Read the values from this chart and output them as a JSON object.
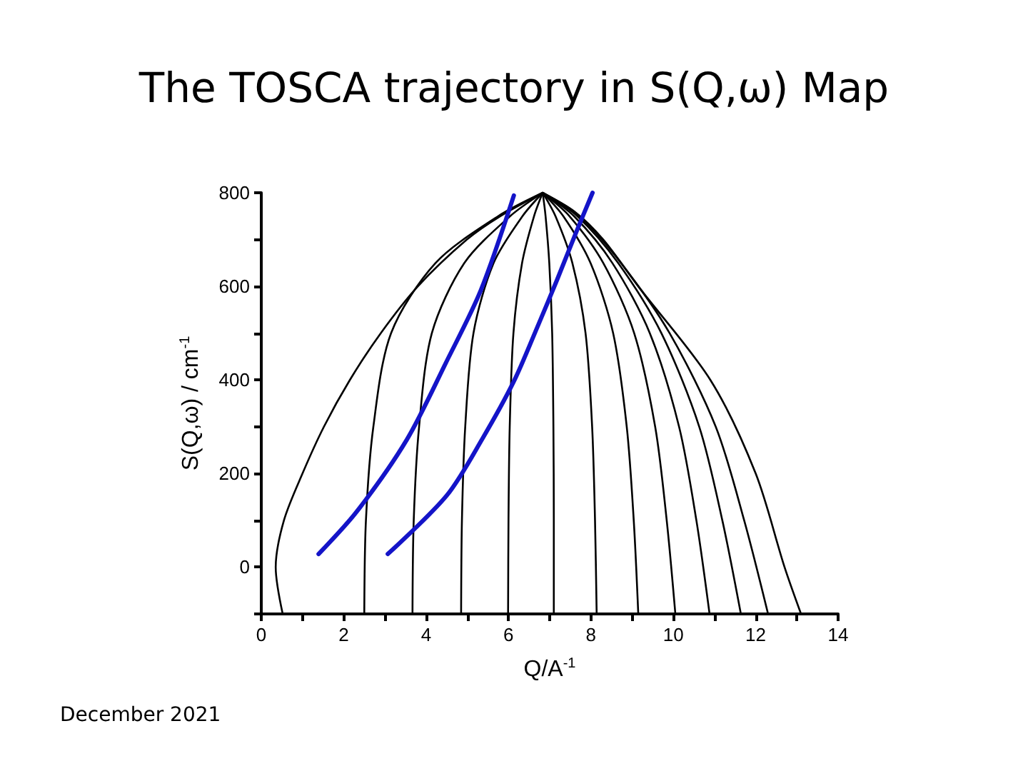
{
  "chart_data": {
    "type": "line",
    "title": "The TOSCA trajectory in S(Q,ω) Map",
    "xlabel": "Q/A$^{-1}$",
    "ylabel": "S(Q,ω) / cm$^{-1}$",
    "annotations": [
      "December 2021"
    ],
    "xlim": [
      0,
      14
    ],
    "xticks": [
      0,
      {
        "value": 1,
        "label": null
      },
      2,
      {
        "value": 3,
        "label": null
      },
      4,
      {
        "value": 5,
        "label": null
      },
      6,
      {
        "value": 7,
        "label": null
      },
      8,
      {
        "value": 9,
        "label": null
      },
      10,
      {
        "value": 11,
        "label": null
      },
      12,
      {
        "value": 13,
        "label": null
      },
      14
    ],
    "ylim": [
      -100,
      800
    ],
    "yticks": [
      {
        "value": -100,
        "label": null
      },
      0,
      {
        "value": 100,
        "label": null
      },
      200,
      {
        "value": 300,
        "label": null
      },
      400,
      {
        "value": 500,
        "label": null
      },
      600,
      {
        "value": 700,
        "label": null
      },
      800
    ],
    "marker": "none",
    "line_style": "solid",
    "series": [
      {
        "color": "#000000",
        "x": [
          0.52,
          0.35,
          0.55,
          1.0,
          1.52,
          2.15,
          2.9,
          3.8,
          4.99,
          5.8,
          6.83
        ],
        "values": [
          -100,
          0,
          100,
          200,
          300,
          400,
          500,
          600,
          700,
          750,
          800
        ]
      },
      {
        "color": "#000000",
        "x": [
          2.5,
          2.54,
          2.72,
          3.15,
          4.23,
          5.75,
          6.83
        ],
        "values": [
          -100,
          100,
          300,
          500,
          650,
          750,
          800
        ]
      },
      {
        "color": "#000000",
        "x": [
          3.67,
          3.7,
          3.83,
          4.14,
          4.93,
          6.04,
          6.83
        ],
        "values": [
          -100,
          100,
          300,
          500,
          650,
          750,
          800
        ]
      },
      {
        "color": "#000000",
        "x": [
          4.85,
          4.87,
          4.95,
          5.15,
          5.64,
          6.34,
          6.83
        ],
        "values": [
          -100,
          100,
          300,
          500,
          650,
          750,
          800
        ]
      },
      {
        "color": "#000000",
        "x": [
          5.99,
          6.0,
          6.03,
          6.12,
          6.33,
          6.62,
          6.83
        ],
        "values": [
          -100,
          100,
          300,
          500,
          650,
          750,
          800
        ]
      },
      {
        "color": "#000000",
        "x": [
          7.1,
          7.1,
          7.09,
          7.06,
          6.99,
          6.9,
          6.83
        ],
        "values": [
          -100,
          100,
          300,
          500,
          650,
          750,
          800
        ]
      },
      {
        "color": "#000000",
        "x": [
          8.14,
          8.1,
          8.03,
          7.87,
          7.55,
          7.14,
          6.83
        ],
        "values": [
          -100,
          100,
          300,
          500,
          650,
          750,
          800
        ]
      },
      {
        "color": "#000000",
        "x": [
          9.15,
          9.04,
          8.87,
          8.54,
          7.99,
          7.33,
          6.83
        ],
        "values": [
          -100,
          100,
          300,
          500,
          650,
          750,
          800
        ]
      },
      {
        "color": "#000000",
        "x": [
          10.05,
          9.84,
          9.56,
          9.05,
          8.3,
          7.48,
          6.83
        ],
        "values": [
          -100,
          100,
          300,
          500,
          650,
          750,
          800
        ]
      },
      {
        "color": "#000000",
        "x": [
          10.88,
          10.56,
          10.14,
          9.43,
          8.52,
          7.59,
          6.83
        ],
        "values": [
          -100,
          100,
          300,
          500,
          650,
          750,
          800
        ]
      },
      {
        "color": "#000000",
        "x": [
          11.64,
          11.19,
          10.63,
          9.71,
          8.66,
          7.67,
          6.83
        ],
        "values": [
          -100,
          100,
          300,
          500,
          650,
          750,
          800
        ]
      },
      {
        "color": "#000000",
        "x": [
          12.3,
          11.72,
          11.03,
          9.91,
          8.73,
          7.72,
          6.83
        ],
        "values": [
          -100,
          100,
          300,
          500,
          650,
          750,
          800
        ]
      },
      {
        "color": "#000000",
        "x": [
          13.1,
          12.7,
          12.0,
          10.9,
          9.15,
          8.3,
          7.6,
          6.83
        ],
        "values": [
          -100,
          0,
          200,
          400,
          600,
          700,
          760,
          800
        ]
      },
      {
        "color": "#1414c8",
        "x": [
          1.39,
          2.32,
          3.53,
          4.5,
          5.33,
          6.13
        ],
        "values": [
          28,
          119,
          272,
          440,
          592,
          794
        ]
      },
      {
        "color": "#1414c8",
        "x": [
          3.07,
          4.5,
          5.37,
          6.13,
          6.71,
          7.17,
          7.63,
          8.04
        ],
        "values": [
          28,
          153,
          275,
          397,
          515,
          612,
          713,
          800
        ]
      }
    ]
  }
}
